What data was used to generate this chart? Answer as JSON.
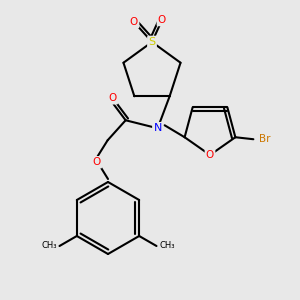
{
  "bg_color": "#e8e8e8",
  "atom_colors": {
    "N": "#0000ff",
    "O": "#ff0000",
    "S": "#cccc00",
    "Br": "#cc7700",
    "C": "#000000"
  },
  "bond_color": "#000000",
  "bond_width": 1.5,
  "figsize": [
    3.0,
    3.0
  ],
  "dpi": 100
}
